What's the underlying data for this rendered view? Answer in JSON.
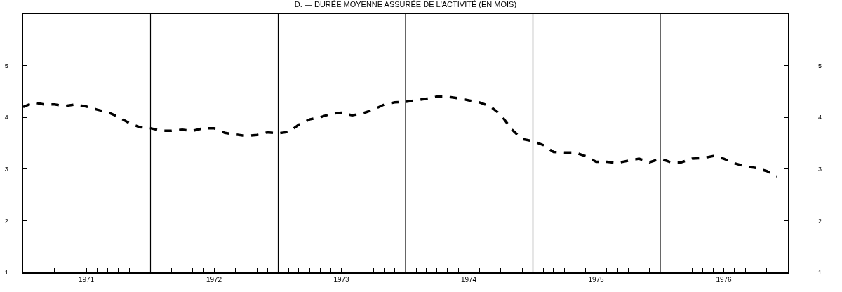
{
  "chart_data": {
    "type": "line",
    "title": "D. — DURÉE MOYENNE ASSURÉE DE L'ACTIVITÉ (EN MOIS)",
    "x": [
      "1971-01",
      "1971-02",
      "1971-03",
      "1971-04",
      "1971-05",
      "1971-06",
      "1971-07",
      "1971-08",
      "1971-09",
      "1971-10",
      "1971-11",
      "1971-12",
      "1972-01",
      "1972-02",
      "1972-03",
      "1972-04",
      "1972-05",
      "1972-06",
      "1972-07",
      "1972-08",
      "1972-09",
      "1972-10",
      "1972-11",
      "1972-12",
      "1973-01",
      "1973-02",
      "1973-03",
      "1973-04",
      "1973-05",
      "1973-06",
      "1973-07",
      "1973-08",
      "1973-09",
      "1973-10",
      "1973-11",
      "1973-12",
      "1974-01",
      "1974-02",
      "1974-03",
      "1974-04",
      "1974-05",
      "1974-06",
      "1974-07",
      "1974-08",
      "1974-09",
      "1974-10",
      "1974-11",
      "1974-12",
      "1975-01",
      "1975-02",
      "1975-03",
      "1975-04",
      "1975-05",
      "1975-06",
      "1975-07",
      "1975-08",
      "1975-09",
      "1975-10",
      "1975-11",
      "1975-12",
      "1976-01",
      "1976-02",
      "1976-03",
      "1976-04",
      "1976-05",
      "1976-06",
      "1976-07",
      "1976-08",
      "1976-09",
      "1976-10",
      "1976-11",
      "1976-12"
    ],
    "series": [
      {
        "color": "#000000",
        "line_style": "dashed",
        "values": [
          4.2,
          4.29,
          4.25,
          4.25,
          4.22,
          4.25,
          4.21,
          4.15,
          4.1,
          4.01,
          3.89,
          3.81,
          3.79,
          3.74,
          3.74,
          3.76,
          3.74,
          3.79,
          3.79,
          3.7,
          3.67,
          3.64,
          3.66,
          3.71,
          3.69,
          3.72,
          3.86,
          3.96,
          4.0,
          4.07,
          4.09,
          4.04,
          4.08,
          4.15,
          4.25,
          4.29,
          4.3,
          4.33,
          4.36,
          4.4,
          4.4,
          4.37,
          4.33,
          4.29,
          4.21,
          4.05,
          3.77,
          3.58,
          3.54,
          3.46,
          3.33,
          3.32,
          3.32,
          3.25,
          3.14,
          3.14,
          3.12,
          3.16,
          3.2,
          3.13,
          3.2,
          3.13,
          3.13,
          3.2,
          3.21,
          3.25,
          3.2,
          3.11,
          3.05,
          3.02,
          2.96,
          2.86
        ]
      }
    ],
    "xlim": [
      "1971-01",
      "1977-01"
    ],
    "xticks": [
      {
        "value": "1971-02",
        "label": null
      },
      {
        "value": "1971-03",
        "label": null
      },
      {
        "value": "1971-04",
        "label": null
      },
      {
        "value": "1971-05",
        "label": null
      },
      {
        "value": "1971-06",
        "label": null
      },
      {
        "value": "1971-07",
        "label": "1971"
      },
      {
        "value": "1971-08",
        "label": null
      },
      {
        "value": "1971-09",
        "label": null
      },
      {
        "value": "1971-10",
        "label": null
      },
      {
        "value": "1971-11",
        "label": null
      },
      {
        "value": "1971-12",
        "label": null
      },
      {
        "value": "1972-02",
        "label": null
      },
      {
        "value": "1972-03",
        "label": null
      },
      {
        "value": "1972-04",
        "label": null
      },
      {
        "value": "1972-05",
        "label": null
      },
      {
        "value": "1972-06",
        "label": null
      },
      {
        "value": "1972-07",
        "label": "1972"
      },
      {
        "value": "1972-08",
        "label": null
      },
      {
        "value": "1972-09",
        "label": null
      },
      {
        "value": "1972-10",
        "label": null
      },
      {
        "value": "1972-11",
        "label": null
      },
      {
        "value": "1972-12",
        "label": null
      },
      {
        "value": "1973-02",
        "label": null
      },
      {
        "value": "1973-03",
        "label": null
      },
      {
        "value": "1973-04",
        "label": null
      },
      {
        "value": "1973-05",
        "label": null
      },
      {
        "value": "1973-06",
        "label": null
      },
      {
        "value": "1973-07",
        "label": "1973"
      },
      {
        "value": "1973-08",
        "label": null
      },
      {
        "value": "1973-09",
        "label": null
      },
      {
        "value": "1973-10",
        "label": null
      },
      {
        "value": "1973-11",
        "label": null
      },
      {
        "value": "1973-12",
        "label": null
      },
      {
        "value": "1974-02",
        "label": null
      },
      {
        "value": "1974-03",
        "label": null
      },
      {
        "value": "1974-04",
        "label": null
      },
      {
        "value": "1974-05",
        "label": null
      },
      {
        "value": "1974-06",
        "label": null
      },
      {
        "value": "1974-07",
        "label": "1974"
      },
      {
        "value": "1974-08",
        "label": null
      },
      {
        "value": "1974-09",
        "label": null
      },
      {
        "value": "1974-10",
        "label": null
      },
      {
        "value": "1974-11",
        "label": null
      },
      {
        "value": "1974-12",
        "label": null
      },
      {
        "value": "1975-02",
        "label": null
      },
      {
        "value": "1975-03",
        "label": null
      },
      {
        "value": "1975-04",
        "label": null
      },
      {
        "value": "1975-05",
        "label": null
      },
      {
        "value": "1975-06",
        "label": null
      },
      {
        "value": "1975-07",
        "label": "1975"
      },
      {
        "value": "1975-08",
        "label": null
      },
      {
        "value": "1975-09",
        "label": null
      },
      {
        "value": "1975-10",
        "label": null
      },
      {
        "value": "1975-11",
        "label": null
      },
      {
        "value": "1975-12",
        "label": null
      },
      {
        "value": "1976-02",
        "label": null
      },
      {
        "value": "1976-03",
        "label": null
      },
      {
        "value": "1976-04",
        "label": null
      },
      {
        "value": "1976-05",
        "label": null
      },
      {
        "value": "1976-06",
        "label": null
      },
      {
        "value": "1976-07",
        "label": "1976"
      },
      {
        "value": "1976-08",
        "label": null
      },
      {
        "value": "1976-09",
        "label": null
      },
      {
        "value": "1976-10",
        "label": null
      },
      {
        "value": "1976-11",
        "label": null
      },
      {
        "value": "1976-12",
        "label": null
      }
    ],
    "ylim": [
      1,
      6
    ],
    "yticks": [
      1,
      2,
      3,
      4,
      5
    ],
    "y2lim": [
      1,
      6
    ],
    "y2ticks": [
      1,
      2,
      3,
      4,
      5
    ],
    "ref_lines": [
      {
        "axis": "x",
        "value": "1972-01",
        "color": "#000000"
      },
      {
        "axis": "x",
        "value": "1973-01",
        "color": "#000000"
      },
      {
        "axis": "x",
        "value": "1974-01",
        "color": "#000000"
      },
      {
        "axis": "x",
        "value": "1975-01",
        "color": "#000000"
      },
      {
        "axis": "x",
        "value": "1976-01",
        "color": "#000000"
      }
    ]
  }
}
